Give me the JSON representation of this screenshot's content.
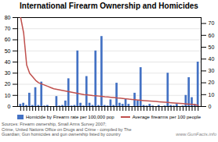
{
  "chart_data": {
    "type": "bar",
    "title": "International Firearm Ownership and Homicides",
    "categories": [
      null,
      null,
      null,
      null,
      null,
      null,
      null,
      null,
      null,
      null,
      null,
      null,
      null,
      null,
      null,
      null,
      null,
      null,
      null,
      null,
      null,
      null,
      null,
      null,
      null,
      null,
      null,
      null,
      null,
      null,
      null,
      null,
      null,
      null,
      null,
      null,
      null,
      null,
      null,
      null,
      null,
      null,
      null,
      null,
      null,
      null,
      null,
      null,
      null,
      null,
      null,
      null,
      null,
      null,
      null,
      null,
      null,
      null,
      null,
      null
    ],
    "series": [
      {
        "name": "Homicide by Firearm rate per 100,000 pop",
        "type": "bar",
        "color": "#4472c4",
        "values": [
          2,
          3,
          1,
          12,
          1,
          17,
          1,
          22,
          0.5,
          1,
          0,
          0,
          9,
          0.5,
          1,
          5,
          25,
          0.5,
          1,
          50,
          3,
          0.5,
          27,
          3,
          1,
          50,
          1,
          63,
          1,
          0.5,
          6,
          1,
          21,
          3,
          2,
          7,
          2,
          0,
          12,
          5,
          35,
          1,
          0.5,
          2,
          0.5,
          0,
          1,
          0,
          0.5,
          30,
          1,
          0.5,
          2,
          0,
          0.5,
          10,
          26,
          8,
          2,
          40
        ]
      },
      {
        "name": "Average firearms per 100 people",
        "type": "line",
        "color": "#c0504d",
        "axis": "y2",
        "values": [
          75,
          62,
          35,
          28,
          25,
          22,
          20,
          19,
          18,
          17,
          16,
          15,
          14.5,
          14,
          13.5,
          13,
          12.5,
          12,
          11.5,
          11,
          10.5,
          10,
          9.8,
          9.5,
          9.2,
          9.0,
          8.8,
          8.5,
          8.2,
          8.0,
          7.8,
          7.5,
          7.2,
          7.0,
          6.8,
          6.5,
          6.2,
          6.0,
          5.8,
          5.5,
          5.2,
          5.0,
          4.8,
          4.6,
          4.4,
          4.2,
          4.0,
          3.8,
          3.6,
          3.4,
          3.2,
          3.0,
          2.8,
          2.6,
          2.4,
          2.2,
          2.0,
          1.8,
          1.5,
          1.0
        ]
      }
    ],
    "ylim": [
      0,
      80
    ],
    "yticks": [
      0,
      10,
      20,
      30,
      40,
      50,
      60,
      70,
      80
    ],
    "y2lim": [
      0,
      75
    ],
    "y2ticks": [
      0,
      10,
      20,
      30,
      40,
      50,
      60,
      70
    ],
    "grid": true,
    "legend": "bottom",
    "tick_labels": "y",
    "annotations": [
      "Sources: Firearm ownership, Small Arms Survey 2007;\nCrime, United Nations Office on Drugs and Crime - compiled by The\nGuardian; Gun homicides and gun ownership listed by country",
      "www.GunFacts.info"
    ]
  }
}
